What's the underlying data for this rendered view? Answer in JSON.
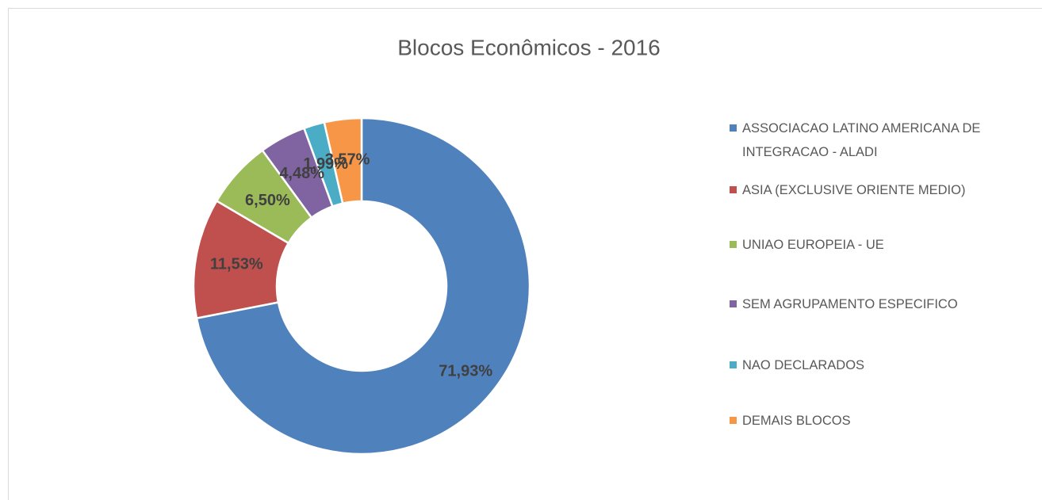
{
  "chart_data": {
    "type": "donut",
    "title": "Blocos Econômicos - 2016",
    "categories": [
      "ASSOCIACAO LATINO AMERICANA DE INTEGRACAO - ALADI",
      "ASIA (EXCLUSIVE ORIENTE MEDIO)",
      "UNIAO EUROPEIA - UE",
      "SEM AGRUPAMENTO ESPECIFICO",
      "NAO DECLARADOS",
      "DEMAIS BLOCOS"
    ],
    "values": [
      71.93,
      11.53,
      6.5,
      4.48,
      1.99,
      3.57
    ],
    "value_labels": [
      "71,93%",
      "11,53%",
      "6,50%",
      "4,48%",
      "1,99%",
      "3,57%"
    ],
    "colors": [
      "#4f81bd",
      "#c0504d",
      "#9bbb59",
      "#8064a2",
      "#4bacc6",
      "#f79646"
    ],
    "legend": "right"
  }
}
